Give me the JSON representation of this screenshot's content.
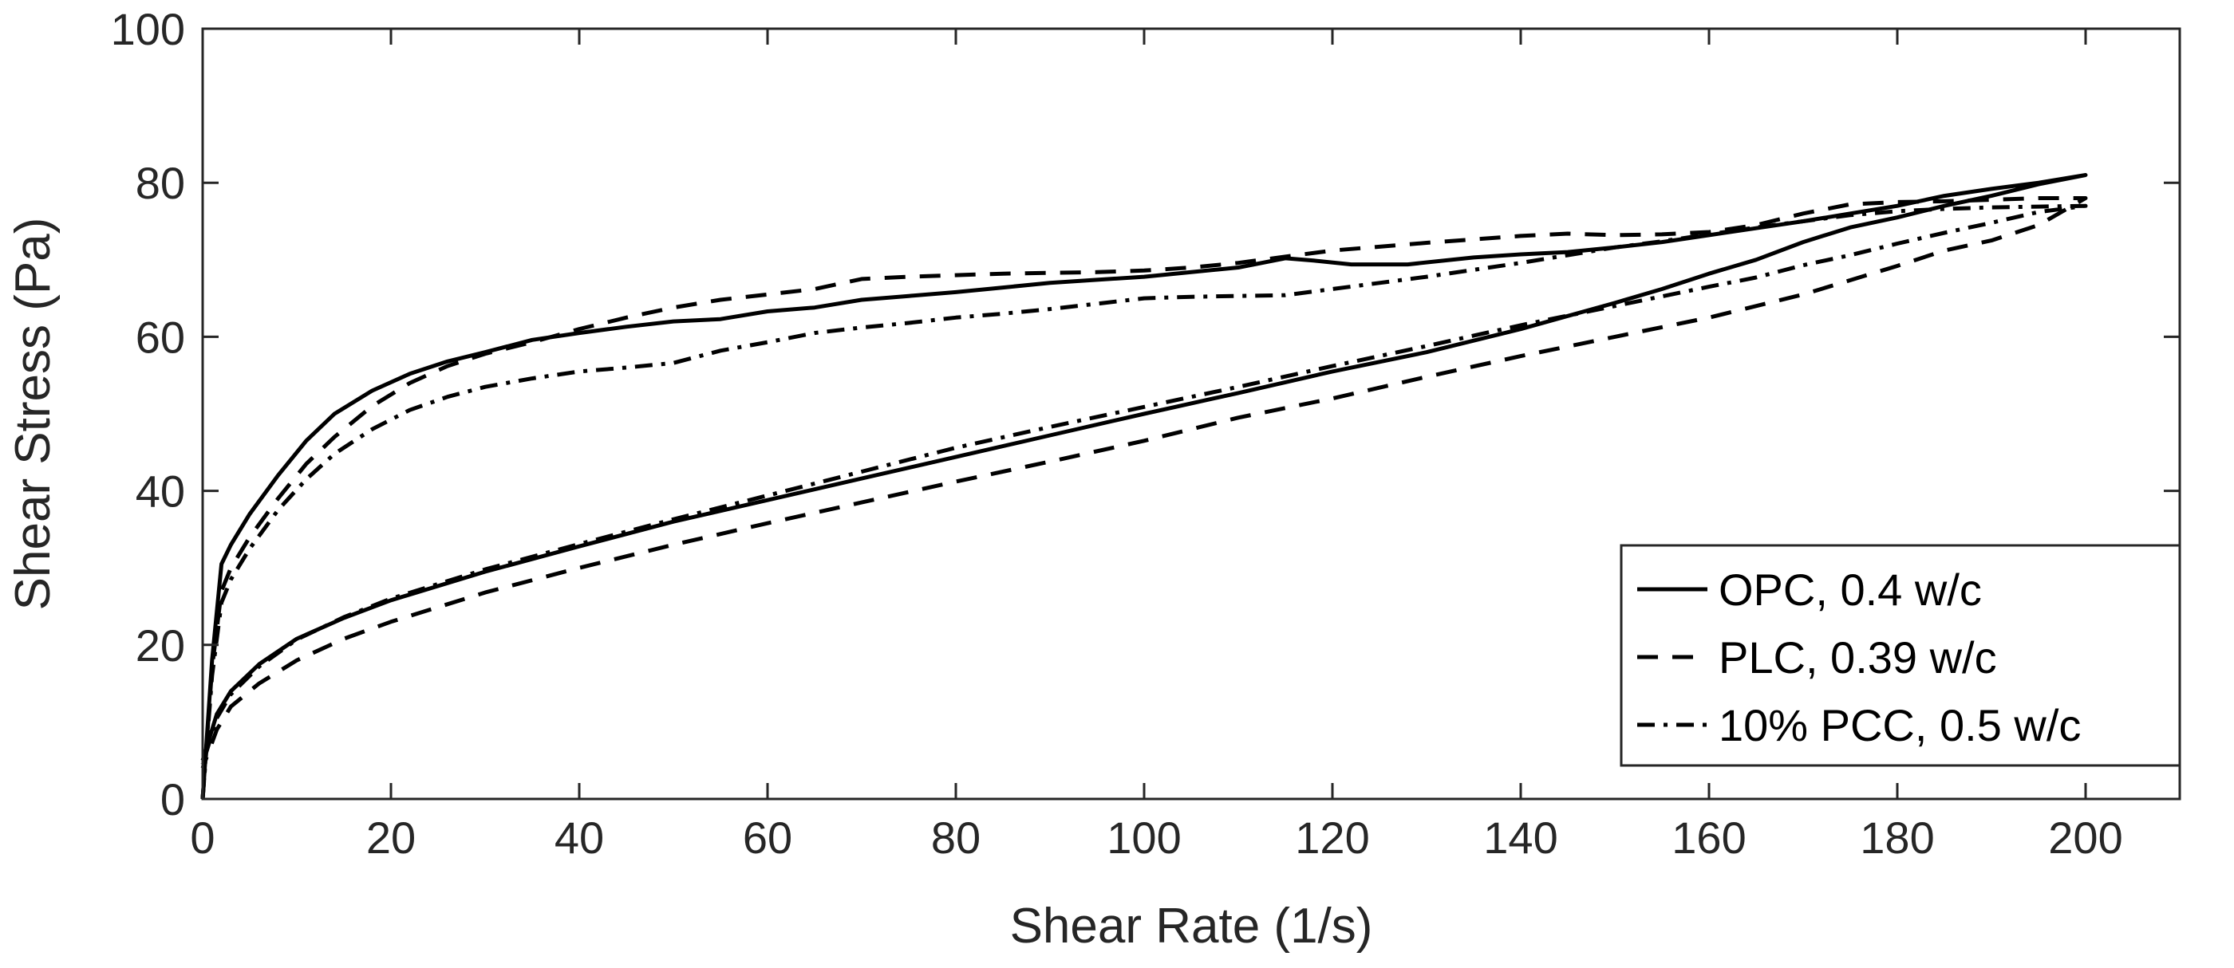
{
  "chart_data": {
    "type": "line",
    "title": "",
    "xlabel": "Shear Rate (1/s)",
    "ylabel": "Shear Stress (Pa)",
    "xlim": [
      0,
      210
    ],
    "ylim": [
      0,
      100
    ],
    "xticks": [
      0,
      20,
      40,
      60,
      80,
      100,
      120,
      140,
      160,
      180,
      200
    ],
    "yticks": [
      0,
      20,
      40,
      60,
      80,
      100
    ],
    "grid": false,
    "legend_position": "bottom-right",
    "series": [
      {
        "name": "OPC, 0.4 w/c",
        "style": "solid",
        "color": "#000000",
        "points": [
          [
            0,
            0
          ],
          [
            1,
            18
          ],
          [
            2,
            30.5
          ],
          [
            3,
            33
          ],
          [
            5,
            37
          ],
          [
            8,
            42
          ],
          [
            11,
            46.5
          ],
          [
            14,
            50
          ],
          [
            18,
            53
          ],
          [
            22,
            55.2
          ],
          [
            26,
            56.8
          ],
          [
            30,
            58
          ],
          [
            35,
            59.6
          ],
          [
            40,
            60.5
          ],
          [
            45,
            61.3
          ],
          [
            50,
            62
          ],
          [
            55,
            62.3
          ],
          [
            60,
            63.3
          ],
          [
            65,
            63.8
          ],
          [
            70,
            64.8
          ],
          [
            75,
            65.3
          ],
          [
            80,
            65.8
          ],
          [
            85,
            66.4
          ],
          [
            90,
            67
          ],
          [
            95,
            67.4
          ],
          [
            100,
            67.8
          ],
          [
            105,
            68.4
          ],
          [
            110,
            69
          ],
          [
            115,
            70.2
          ],
          [
            118,
            69.9
          ],
          [
            122,
            69.4
          ],
          [
            128,
            69.4
          ],
          [
            135,
            70.3
          ],
          [
            140,
            70.7
          ],
          [
            145,
            71
          ],
          [
            150,
            71.6
          ],
          [
            155,
            72.3
          ],
          [
            160,
            73.2
          ],
          [
            165,
            74.1
          ],
          [
            170,
            75
          ],
          [
            175,
            76
          ],
          [
            180,
            77
          ],
          [
            185,
            78.3
          ],
          [
            190,
            79.2
          ],
          [
            195,
            80
          ],
          [
            200,
            81
          ],
          [
            195,
            79.8
          ],
          [
            190,
            78.3
          ],
          [
            185,
            77
          ],
          [
            180,
            75.5
          ],
          [
            175,
            74.2
          ],
          [
            170,
            72.3
          ],
          [
            165,
            70
          ],
          [
            160,
            68.2
          ],
          [
            155,
            66.2
          ],
          [
            150,
            64.4
          ],
          [
            140,
            61
          ],
          [
            130,
            58
          ],
          [
            120,
            55.5
          ],
          [
            110,
            52.7
          ],
          [
            100,
            50
          ],
          [
            90,
            47.2
          ],
          [
            80,
            44.4
          ],
          [
            70,
            41.6
          ],
          [
            60,
            38.8
          ],
          [
            50,
            36
          ],
          [
            40,
            32.8
          ],
          [
            30,
            29.5
          ],
          [
            20,
            25.8
          ],
          [
            15,
            23.5
          ],
          [
            10,
            20.8
          ],
          [
            6,
            17.5
          ],
          [
            3,
            14
          ],
          [
            1.5,
            11
          ],
          [
            0,
            5
          ]
        ]
      },
      {
        "name": "PLC, 0.39 w/c",
        "style": "dashed",
        "color": "#000000",
        "points": [
          [
            0,
            0
          ],
          [
            1,
            17
          ],
          [
            2,
            27
          ],
          [
            3,
            30
          ],
          [
            5,
            34
          ],
          [
            8,
            39
          ],
          [
            11,
            43.5
          ],
          [
            14,
            47
          ],
          [
            18,
            51
          ],
          [
            22,
            54
          ],
          [
            26,
            56.2
          ],
          [
            30,
            57.8
          ],
          [
            35,
            59.3
          ],
          [
            40,
            61
          ],
          [
            45,
            62.5
          ],
          [
            50,
            63.8
          ],
          [
            55,
            64.8
          ],
          [
            60,
            65.5
          ],
          [
            65,
            66.2
          ],
          [
            70,
            67.5
          ],
          [
            75,
            67.8
          ],
          [
            80,
            68
          ],
          [
            85,
            68.2
          ],
          [
            90,
            68.3
          ],
          [
            95,
            68.4
          ],
          [
            100,
            68.6
          ],
          [
            105,
            69
          ],
          [
            110,
            69.6
          ],
          [
            115,
            70.4
          ],
          [
            120,
            71.2
          ],
          [
            130,
            72.2
          ],
          [
            140,
            73.1
          ],
          [
            145,
            73.4
          ],
          [
            150,
            73.2
          ],
          [
            155,
            73.3
          ],
          [
            160,
            73.6
          ],
          [
            165,
            74.5
          ],
          [
            170,
            76
          ],
          [
            175,
            77.2
          ],
          [
            180,
            77.5
          ],
          [
            185,
            77.6
          ],
          [
            190,
            77.8
          ],
          [
            195,
            78
          ],
          [
            200,
            78
          ],
          [
            195,
            74.5
          ],
          [
            190,
            72.5
          ],
          [
            185,
            71.2
          ],
          [
            180,
            69.2
          ],
          [
            170,
            65.5
          ],
          [
            160,
            62.5
          ],
          [
            150,
            60
          ],
          [
            140,
            57.5
          ],
          [
            130,
            54.8
          ],
          [
            120,
            52
          ],
          [
            110,
            49.5
          ],
          [
            100,
            46.5
          ],
          [
            90,
            43.8
          ],
          [
            80,
            41.2
          ],
          [
            70,
            38.5
          ],
          [
            60,
            35.8
          ],
          [
            50,
            33
          ],
          [
            40,
            30
          ],
          [
            30,
            26.8
          ],
          [
            20,
            23
          ],
          [
            15,
            20.8
          ],
          [
            10,
            18
          ],
          [
            6,
            15
          ],
          [
            3,
            12
          ],
          [
            1.5,
            9
          ],
          [
            0,
            4
          ]
        ]
      },
      {
        "name": "10% PCC, 0.5 w/c",
        "style": "dashdot",
        "color": "#000000",
        "points": [
          [
            0,
            0
          ],
          [
            1,
            16
          ],
          [
            2,
            25.5
          ],
          [
            3,
            28.5
          ],
          [
            5,
            32.5
          ],
          [
            8,
            37.5
          ],
          [
            11,
            41.5
          ],
          [
            14,
            44.8
          ],
          [
            18,
            48
          ],
          [
            22,
            50.5
          ],
          [
            26,
            52.2
          ],
          [
            30,
            53.5
          ],
          [
            35,
            54.6
          ],
          [
            40,
            55.5
          ],
          [
            45,
            56
          ],
          [
            50,
            56.6
          ],
          [
            55,
            58.2
          ],
          [
            60,
            59.3
          ],
          [
            65,
            60.5
          ],
          [
            70,
            61.2
          ],
          [
            75,
            61.8
          ],
          [
            80,
            62.5
          ],
          [
            85,
            63
          ],
          [
            90,
            63.6
          ],
          [
            95,
            64.3
          ],
          [
            100,
            65
          ],
          [
            105,
            65.2
          ],
          [
            110,
            65.3
          ],
          [
            115,
            65.4
          ],
          [
            120,
            66.2
          ],
          [
            125,
            67
          ],
          [
            130,
            67.8
          ],
          [
            135,
            68.7
          ],
          [
            140,
            69.6
          ],
          [
            145,
            70.6
          ],
          [
            150,
            71.6
          ],
          [
            155,
            72.4
          ],
          [
            160,
            73.3
          ],
          [
            165,
            74.2
          ],
          [
            170,
            75
          ],
          [
            175,
            75.8
          ],
          [
            180,
            76.3
          ],
          [
            185,
            76.6
          ],
          [
            190,
            76.8
          ],
          [
            195,
            76.9
          ],
          [
            200,
            77
          ],
          [
            195,
            76.2
          ],
          [
            190,
            74.8
          ],
          [
            185,
            73.5
          ],
          [
            180,
            72.1
          ],
          [
            175,
            70.6
          ],
          [
            170,
            69.3
          ],
          [
            165,
            67.7
          ],
          [
            160,
            66.5
          ],
          [
            150,
            64
          ],
          [
            140,
            61.5
          ],
          [
            130,
            58.8
          ],
          [
            120,
            56.2
          ],
          [
            110,
            53.5
          ],
          [
            100,
            50.9
          ],
          [
            90,
            48.3
          ],
          [
            80,
            45.6
          ],
          [
            70,
            42.5
          ],
          [
            60,
            39.4
          ],
          [
            50,
            36.3
          ],
          [
            40,
            33.1
          ],
          [
            30,
            29.8
          ],
          [
            20,
            26
          ],
          [
            15,
            23.6
          ],
          [
            10,
            20.7
          ],
          [
            6,
            17.2
          ],
          [
            3,
            13.6
          ],
          [
            1.5,
            10.5
          ],
          [
            0,
            4.5
          ]
        ]
      }
    ]
  }
}
